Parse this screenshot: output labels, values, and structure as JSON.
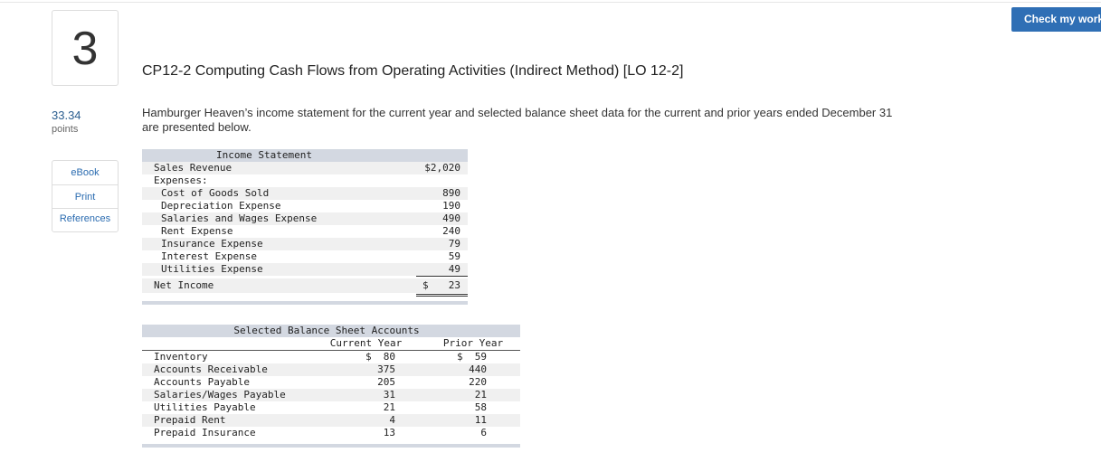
{
  "question": {
    "number": "3",
    "points_value": "33.34",
    "points_label": "points"
  },
  "links": [
    "eBook",
    "Print",
    "References"
  ],
  "button": "Check my work",
  "title": "CP12-2 Computing Cash Flows from Operating Activities (Indirect Method) [LO 12-2]",
  "intro": "Hamburger Heaven’s income statement for the current year and selected balance sheet data for the current and prior years ended December 31 are presented below.",
  "income_statement": {
    "title": "Income Statement",
    "currency": "$",
    "sales": {
      "label": "Sales Revenue",
      "amount": "$2,020"
    },
    "expenses": {
      "label": "Expenses:",
      "items": [
        {
          "label": "Cost of Goods Sold",
          "amount": "890"
        },
        {
          "label": "Depreciation Expense",
          "amount": "190"
        },
        {
          "label": "Salaries and Wages Expense",
          "amount": "490"
        },
        {
          "label": "Rent Expense",
          "amount": "240"
        },
        {
          "label": "Insurance Expense",
          "amount": "79"
        },
        {
          "label": "Interest Expense",
          "amount": "59"
        },
        {
          "label": "Utilities Expense",
          "amount": "49"
        }
      ]
    },
    "net_income": {
      "label": "Net Income",
      "amount": "23"
    }
  },
  "balance_sheet": {
    "title": "Selected Balance Sheet Accounts",
    "currency": "$",
    "columns": [
      "Current Year",
      "Prior Year"
    ],
    "rows": [
      {
        "label": "Inventory",
        "current": "80",
        "prior": "59"
      },
      {
        "label": "Accounts Receivable",
        "current": "375",
        "prior": "440"
      },
      {
        "label": "Accounts Payable",
        "current": "205",
        "prior": "220"
      },
      {
        "label": "Salaries/Wages Payable",
        "current": "31",
        "prior": "21"
      },
      {
        "label": "Utilities Payable",
        "current": "21",
        "prior": "58"
      },
      {
        "label": "Prepaid Rent",
        "current": "4",
        "prior": "11"
      },
      {
        "label": "Prepaid Insurance",
        "current": "13",
        "prior": "6"
      }
    ]
  }
}
